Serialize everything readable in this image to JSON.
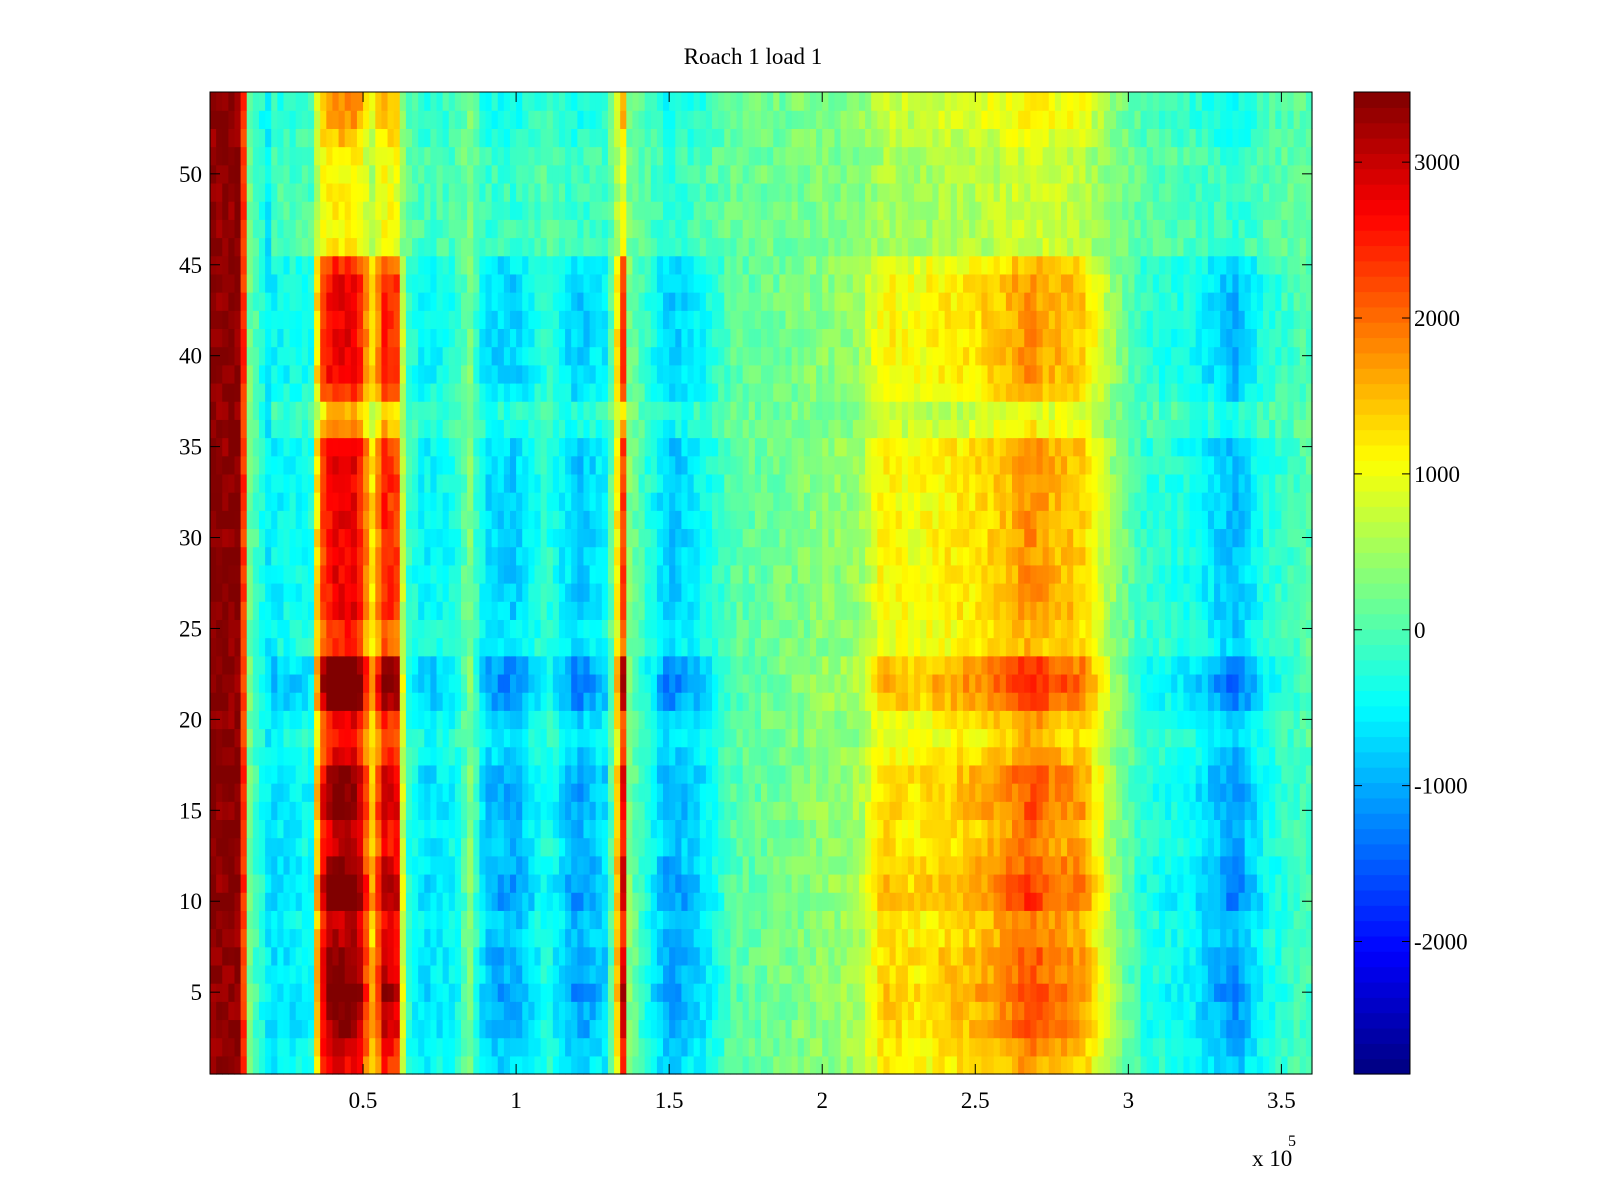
{
  "chart_data": {
    "type": "heatmap",
    "title": "Roach 1 load 1",
    "xlabel": "",
    "ylabel": "",
    "x_multiplier_label": "x 10",
    "x_multiplier_exponent": "5",
    "xlim": [
      0,
      360000
    ],
    "ylim": [
      0.5,
      54.5
    ],
    "x_ticks": [
      50000,
      100000,
      150000,
      200000,
      250000,
      300000,
      350000
    ],
    "x_tick_labels": [
      "0.5",
      "1",
      "1.5",
      "2",
      "2.5",
      "3",
      "3.5"
    ],
    "y_ticks": [
      5,
      10,
      15,
      20,
      25,
      30,
      35,
      40,
      45,
      50
    ],
    "y_tick_labels": [
      "5",
      "10",
      "15",
      "20",
      "25",
      "30",
      "35",
      "40",
      "45",
      "50"
    ],
    "colorbar": {
      "colormap": "jet",
      "clim": [
        -2850,
        3450
      ],
      "ticks": [
        -2000,
        -1000,
        0,
        1000,
        2000,
        3000
      ],
      "tick_labels": [
        "-2000",
        "-1000",
        "0",
        "1000",
        "2000",
        "3000"
      ]
    },
    "rows": 54,
    "x_profile": [
      [
        0,
        3400
      ],
      [
        10000,
        3400
      ],
      [
        13000,
        200
      ],
      [
        20000,
        -700
      ],
      [
        33000,
        -500
      ],
      [
        36000,
        2500
      ],
      [
        40000,
        3400
      ],
      [
        48000,
        3400
      ],
      [
        53000,
        1500
      ],
      [
        57000,
        3000
      ],
      [
        61000,
        2800
      ],
      [
        64000,
        -200
      ],
      [
        70000,
        -700
      ],
      [
        80000,
        -500
      ],
      [
        85000,
        300
      ],
      [
        90000,
        -900
      ],
      [
        100000,
        -1000
      ],
      [
        110000,
        -300
      ],
      [
        120000,
        -1100
      ],
      [
        130000,
        -700
      ],
      [
        135000,
        2800
      ],
      [
        137000,
        300
      ],
      [
        150000,
        -1100
      ],
      [
        160000,
        -700
      ],
      [
        170000,
        0
      ],
      [
        185000,
        200
      ],
      [
        200000,
        400
      ],
      [
        212000,
        500
      ],
      [
        220000,
        1400
      ],
      [
        230000,
        1200
      ],
      [
        240000,
        1400
      ],
      [
        250000,
        1500
      ],
      [
        260000,
        1800
      ],
      [
        268000,
        2200
      ],
      [
        275000,
        1900
      ],
      [
        285000,
        1700
      ],
      [
        295000,
        500
      ],
      [
        305000,
        -300
      ],
      [
        320000,
        -500
      ],
      [
        335000,
        -1200
      ],
      [
        345000,
        -400
      ],
      [
        360000,
        0
      ]
    ],
    "y_profile": [
      [
        1,
        0.8
      ],
      [
        2,
        0.9
      ],
      [
        3,
        1.0
      ],
      [
        4,
        1.0
      ],
      [
        5,
        1.1
      ],
      [
        6,
        1.0
      ],
      [
        7,
        1.0
      ],
      [
        8,
        0.9
      ],
      [
        9,
        0.9
      ],
      [
        10,
        1.1
      ],
      [
        11,
        1.1
      ],
      [
        12,
        1.0
      ],
      [
        13,
        0.9
      ],
      [
        14,
        0.9
      ],
      [
        15,
        1.0
      ],
      [
        16,
        1.0
      ],
      [
        17,
        1.0
      ],
      [
        18,
        0.8
      ],
      [
        19,
        0.7
      ],
      [
        20,
        0.8
      ],
      [
        21,
        1.1
      ],
      [
        22,
        1.2
      ],
      [
        23,
        1.1
      ],
      [
        24,
        0.7
      ],
      [
        25,
        0.7
      ],
      [
        26,
        0.8
      ],
      [
        27,
        0.8
      ],
      [
        28,
        0.8
      ],
      [
        29,
        0.8
      ],
      [
        30,
        0.8
      ],
      [
        31,
        0.8
      ],
      [
        32,
        0.8
      ],
      [
        33,
        0.8
      ],
      [
        34,
        0.8
      ],
      [
        35,
        0.8
      ],
      [
        36,
        0.5
      ],
      [
        37,
        0.4
      ],
      [
        38,
        0.7
      ],
      [
        39,
        0.8
      ],
      [
        40,
        0.8
      ],
      [
        41,
        0.8
      ],
      [
        42,
        0.8
      ],
      [
        43,
        0.8
      ],
      [
        44,
        0.8
      ],
      [
        45,
        0.7
      ],
      [
        46,
        0.3
      ],
      [
        47,
        0.3
      ],
      [
        48,
        0.3
      ],
      [
        49,
        0.3
      ],
      [
        50,
        0.3
      ],
      [
        51,
        0.3
      ],
      [
        52,
        0.4
      ],
      [
        53,
        0.5
      ],
      [
        54,
        0.5
      ]
    ]
  }
}
